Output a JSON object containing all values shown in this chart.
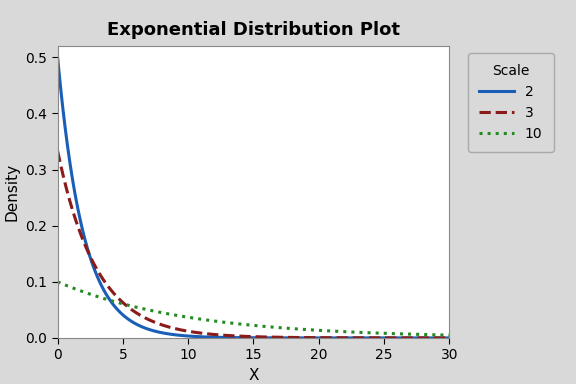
{
  "title": "Exponential Distribution Plot",
  "xlabel": "X",
  "ylabel": "Density",
  "xlim": [
    0,
    30
  ],
  "ylim": [
    0,
    0.52
  ],
  "scales": [
    2,
    3,
    10
  ],
  "colors": [
    "#1a5eb8",
    "#8b1a1a",
    "#228B22"
  ],
  "linestyles": [
    "solid",
    "dashed",
    "dotted"
  ],
  "linewidths": [
    2.2,
    2.2,
    2.2
  ],
  "legend_title": "Scale",
  "yticks": [
    0.0,
    0.1,
    0.2,
    0.3,
    0.4,
    0.5
  ],
  "xticks": [
    0,
    5,
    10,
    15,
    20,
    25,
    30
  ],
  "background_color": "#d9d9d9",
  "plot_background": "#ffffff",
  "title_fontsize": 13,
  "axis_label_fontsize": 11,
  "tick_fontsize": 10
}
